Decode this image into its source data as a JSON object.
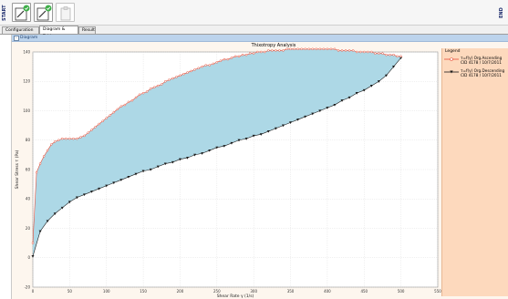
{
  "toolbar": {
    "start_label": "START",
    "end_label": "END",
    "buttons": [
      {
        "icon": "edit-check-icon"
      },
      {
        "icon": "edit-check-icon"
      },
      {
        "icon": "clipboard-icon"
      }
    ]
  },
  "tabs": [
    {
      "label": "Configuration",
      "active": false
    },
    {
      "label": "Diagram & Table",
      "active": true
    },
    {
      "label": "Result",
      "active": false
    }
  ],
  "panel": {
    "title": "Diagram"
  },
  "colors": {
    "fill": "#add8e6",
    "ascending": "#e8503a",
    "descending": "#1a1a1a",
    "legend_bg": "#fdd9bd",
    "header_bg": "#bcd3ec"
  },
  "chart_data": {
    "type": "area",
    "title": "Thixotropy Analysis",
    "xlabel": "Shear Rate γ (1/s)",
    "ylabel": "Shear Stress τ (Pa)",
    "xlim": [
      0,
      550
    ],
    "ylim": [
      -20,
      140
    ],
    "xticks": [
      "0",
      "50",
      "100",
      "150",
      "200",
      "250",
      "300",
      "350",
      "400",
      "450",
      "500",
      "550"
    ],
    "yticks": [
      "-20",
      "0",
      "20",
      "40",
      "60",
      "80",
      "100",
      "120",
      "140"
    ],
    "grid": true,
    "legend_title": "Legend",
    "legend_position": "right",
    "series": [
      {
        "name": "τ=f(γ) Org.Ascending CID 4178 / 10/7/2011",
        "marker": "circle",
        "x": [
          0,
          5,
          10,
          15,
          20,
          25,
          30,
          35,
          40,
          45,
          50,
          55,
          60,
          65,
          70,
          75,
          80,
          85,
          90,
          95,
          100,
          105,
          110,
          115,
          120,
          125,
          130,
          135,
          140,
          145,
          150,
          155,
          160,
          165,
          170,
          175,
          180,
          185,
          190,
          195,
          200,
          205,
          210,
          215,
          220,
          225,
          230,
          235,
          240,
          245,
          250,
          255,
          260,
          265,
          270,
          275,
          280,
          285,
          290,
          295,
          300,
          305,
          310,
          315,
          320,
          325,
          330,
          335,
          340,
          345,
          350,
          355,
          360,
          365,
          370,
          375,
          380,
          385,
          390,
          395,
          400,
          405,
          410,
          415,
          420,
          425,
          430,
          435,
          440,
          445,
          450,
          455,
          460,
          465,
          470,
          475,
          480,
          485,
          490,
          495,
          500
        ],
        "y": [
          10,
          58,
          64,
          69,
          73,
          77,
          79,
          80,
          81,
          81,
          81,
          81,
          81,
          82,
          83,
          85,
          87,
          89,
          91,
          93,
          95,
          97,
          99,
          101,
          103,
          104,
          106,
          107,
          109,
          111,
          112,
          113,
          115,
          116,
          117,
          118,
          120,
          121,
          122,
          123,
          124,
          125,
          126,
          127,
          128,
          129,
          130,
          131,
          131,
          132,
          133,
          134,
          135,
          135,
          136,
          137,
          137,
          138,
          138,
          139,
          139,
          140,
          140,
          140,
          141,
          141,
          141,
          141,
          141,
          142,
          142,
          142,
          142,
          142,
          142,
          142,
          142,
          142,
          142,
          142,
          142,
          142,
          142,
          141,
          141,
          141,
          141,
          141,
          140,
          140,
          140,
          140,
          140,
          139,
          139,
          139,
          138,
          138,
          138,
          137,
          137
        ]
      },
      {
        "name": "τ=f(γ) Org.Descending CID 4178 / 10/7/2011",
        "marker": "triangle-down",
        "x": [
          0,
          10,
          20,
          30,
          40,
          50,
          60,
          70,
          80,
          90,
          100,
          110,
          120,
          130,
          140,
          150,
          160,
          170,
          180,
          190,
          200,
          210,
          220,
          230,
          240,
          250,
          260,
          270,
          280,
          290,
          300,
          310,
          320,
          330,
          340,
          350,
          360,
          370,
          380,
          390,
          400,
          410,
          420,
          430,
          440,
          450,
          460,
          470,
          480,
          490,
          500
        ],
        "y": [
          1,
          18,
          25,
          30,
          34,
          38,
          41,
          43,
          45,
          47,
          49,
          51,
          53,
          55,
          57,
          59,
          60,
          62,
          64,
          65,
          67,
          68,
          70,
          71,
          73,
          75,
          76,
          78,
          80,
          81,
          83,
          84,
          86,
          88,
          90,
          92,
          94,
          96,
          98,
          100,
          102,
          104,
          107,
          109,
          112,
          114,
          117,
          120,
          124,
          130,
          136
        ]
      }
    ]
  }
}
